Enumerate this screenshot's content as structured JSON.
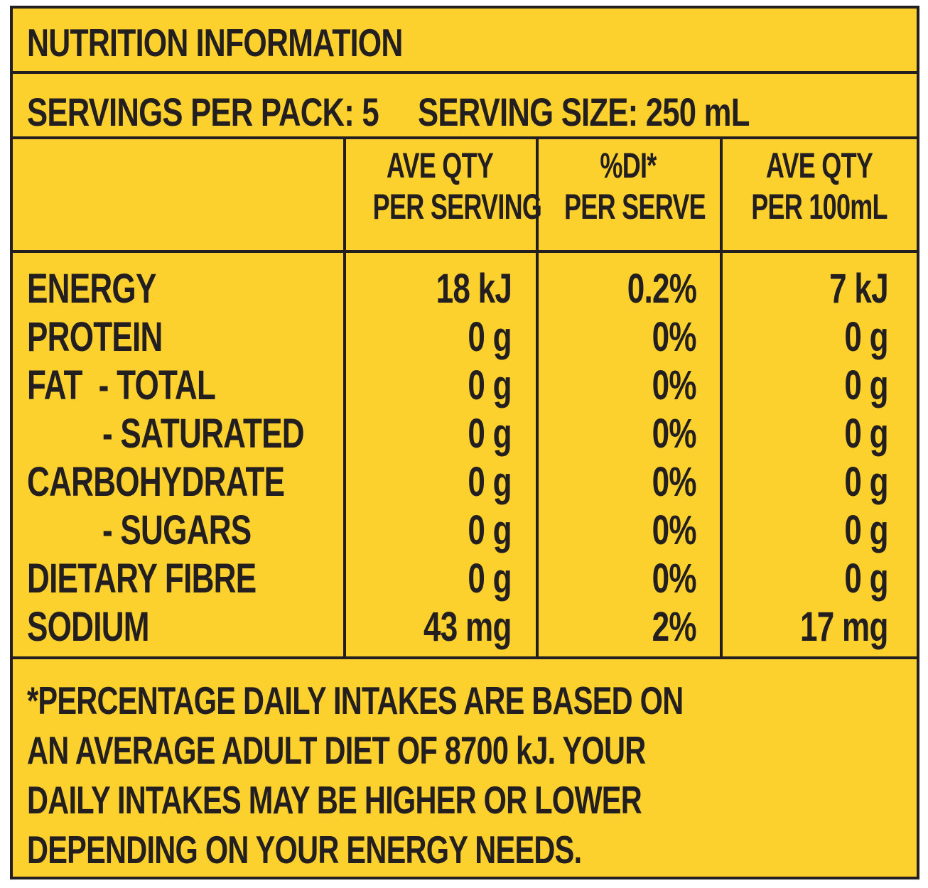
{
  "title": "NUTRITION INFORMATION",
  "servings": {
    "per_pack_label": "SERVINGS PER PACK:",
    "per_pack_value": "5",
    "serving_size_label": "SERVING SIZE:",
    "serving_size_value": "250 mL"
  },
  "headers": [
    {
      "line1": "AVE QTY",
      "line2": "PER SERVING"
    },
    {
      "line1": "%DI*",
      "line2": "PER SERVE"
    },
    {
      "line1": "AVE QTY",
      "line2": "PER 100mL"
    }
  ],
  "rows": [
    {
      "label": "ENERGY",
      "per_serving": "18 kJ",
      "di_percent": "0.2%",
      "per_100ml": "7 kJ"
    },
    {
      "label": "PROTEIN",
      "per_serving": "0 g",
      "di_percent": "0%",
      "per_100ml": "0 g"
    },
    {
      "label": "FAT  - TOTAL",
      "per_serving": "0 g",
      "di_percent": "0%",
      "per_100ml": "0 g"
    },
    {
      "label": "- SATURATED",
      "per_serving": "0 g",
      "di_percent": "0%",
      "per_100ml": "0 g"
    },
    {
      "label": "CARBOHYDRATE",
      "per_serving": "0 g",
      "di_percent": "0%",
      "per_100ml": "0 g"
    },
    {
      "label": "- SUGARS",
      "per_serving": "0 g",
      "di_percent": "0%",
      "per_100ml": "0 g"
    },
    {
      "label": "DIETARY FIBRE",
      "per_serving": "0 g",
      "di_percent": "0%",
      "per_100ml": "0 g"
    },
    {
      "label": "SODIUM",
      "per_serving": "43 mg",
      "di_percent": "2%",
      "per_100ml": "17 mg"
    }
  ],
  "footnote": [
    "*PERCENTAGE DAILY INTAKES ARE BASED ON",
    "AN AVERAGE ADULT DIET OF 8700 kJ. YOUR",
    "DAILY INTAKES MAY BE HIGHER OR LOWER",
    "DEPENDING ON YOUR ENERGY NEEDS."
  ],
  "colors": {
    "label_background": "#fcd12d",
    "ink": "#231f20"
  }
}
